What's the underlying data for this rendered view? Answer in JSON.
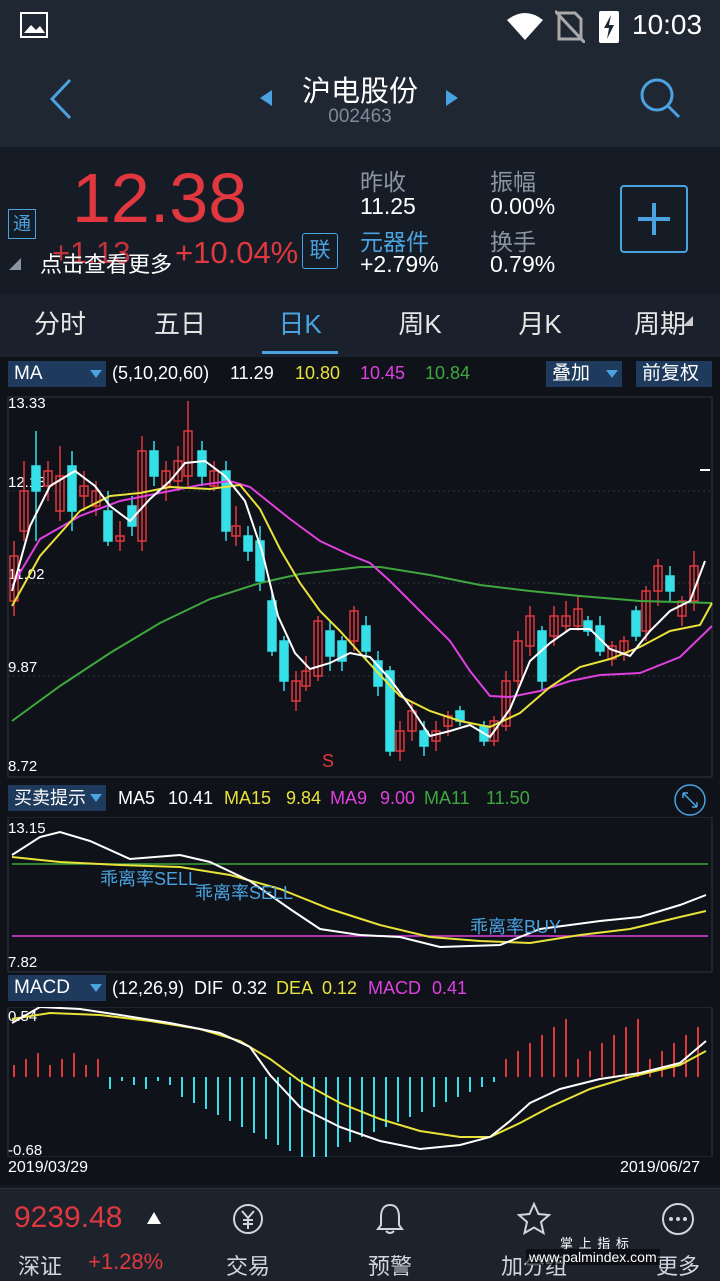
{
  "status": {
    "time": "10:03"
  },
  "header": {
    "title": "沪电股份",
    "code": "002463"
  },
  "quote": {
    "price": "12.38",
    "change": "+1.13",
    "change_pct": "+10.04%",
    "tong_badge": "通",
    "lian_badge": "联",
    "hint": "点击查看更多",
    "prev_close_label": "昨收",
    "prev_close": "11.25",
    "amplitude_label": "振幅",
    "amplitude": "0.00%",
    "sector_label": "元器件",
    "sector_change": "+2.79%",
    "turnover_label": "换手",
    "turnover": "0.79%"
  },
  "tabs": [
    {
      "label": "分时"
    },
    {
      "label": "五日"
    },
    {
      "label": "日K"
    },
    {
      "label": "周K"
    },
    {
      "label": "月K"
    },
    {
      "label": "周期"
    }
  ],
  "ma_bar": {
    "select": "MA",
    "params": "(5,10,20,60)",
    "v1": "11.29",
    "v2": "10.80",
    "v3": "10.45",
    "v4": "10.84",
    "overlay": "叠加",
    "adjust": "前复权"
  },
  "main_axis": {
    "max": "13.33",
    "l1": "12.18",
    "l2": "11.02",
    "l3": "9.87",
    "min": "8.72"
  },
  "signal_letter": "S",
  "bs_bar": {
    "select": "买卖提示",
    "ma5_label": "MA5",
    "ma5": "10.41",
    "ma15_label": "MA15",
    "ma15": "9.84",
    "ma9_label": "MA9",
    "ma9": "9.00",
    "ma11_label": "MA11",
    "ma11": "11.50"
  },
  "bs_axis": {
    "max": "13.15",
    "min": "7.82"
  },
  "bs_labels": {
    "sell1": "乖离率SELL",
    "sell2": "乖离率SELL",
    "buy": "乖离率BUY"
  },
  "macd_bar": {
    "select": "MACD",
    "params": "(12,26,9)",
    "dif_label": "DIF",
    "dif": "0.32",
    "dea_label": "DEA",
    "dea": "0.12",
    "macd_label": "MACD",
    "macd": "0.41"
  },
  "macd_axis": {
    "max": "0.54",
    "min": "-0.68"
  },
  "dates": {
    "start": "2019/03/29",
    "end": "2019/06/27"
  },
  "bottom": {
    "index_value": "9239.48",
    "index_name": "深证",
    "index_change": "+1.28%",
    "nav": [
      {
        "label": "交易",
        "icon": "trade-icon"
      },
      {
        "label": "预警",
        "icon": "bell-icon"
      },
      {
        "label": "加分组",
        "icon": "star-icon"
      },
      {
        "label": "更多",
        "icon": "more-icon"
      }
    ]
  },
  "watermark": {
    "line1": "掌 上 指 标",
    "line2": "www.palmindex.com"
  },
  "colors": {
    "up": "#e0383e",
    "down": "#35e0e8",
    "accent": "#4aa3e0",
    "yellow": "#e8e23a",
    "magenta": "#e040e0",
    "green": "#3ea83e"
  }
}
